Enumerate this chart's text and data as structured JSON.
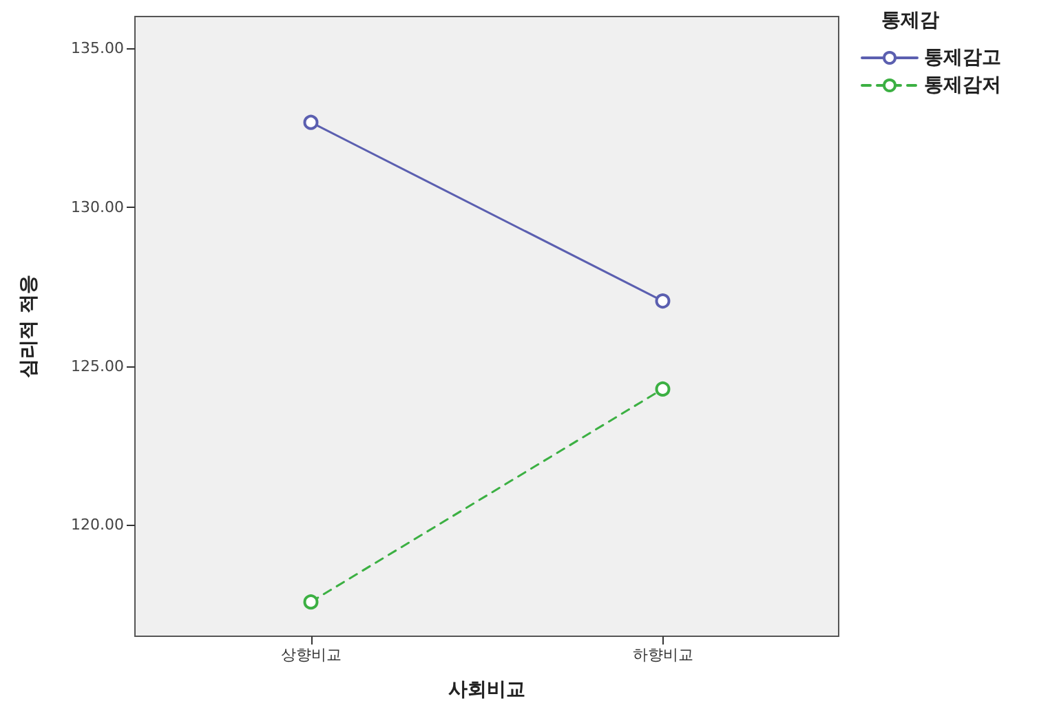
{
  "chart_data": {
    "type": "line",
    "xlabel": "사회비교",
    "ylabel": "심리적 적응",
    "legend_title": "통제감",
    "categories": [
      "상향비교",
      "하향비교"
    ],
    "series": [
      {
        "name": "통제감고",
        "color": "#5b5fb0",
        "values": [
          132.67,
          127.05
        ],
        "line_style": "solid"
      },
      {
        "name": "통제감저",
        "color": "#3cb043",
        "values": [
          117.58,
          124.28
        ],
        "line_style": "dashed"
      }
    ],
    "ylim": [
      116.5,
      136
    ],
    "yticks": [
      {
        "value": 120,
        "label": "120.00"
      },
      {
        "value": 125,
        "label": "125.00"
      },
      {
        "value": 130,
        "label": "130.00"
      },
      {
        "value": 135,
        "label": "135.00"
      }
    ],
    "grid": false,
    "legend": "top right",
    "marker": "circle"
  }
}
